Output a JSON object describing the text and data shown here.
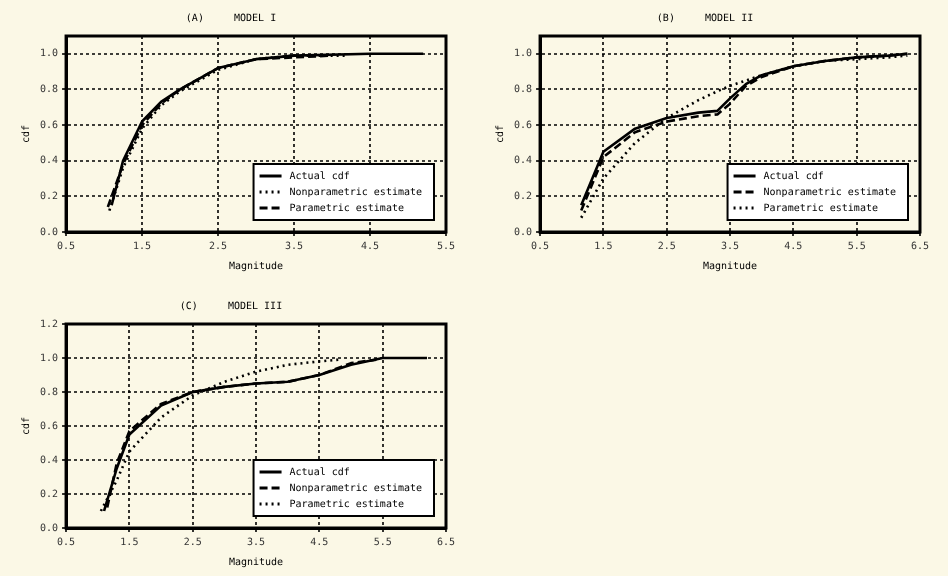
{
  "chart_data": [
    {
      "type": "line",
      "title": "(A)     MODEL I",
      "xlabel": "Magnitude",
      "ylabel": "cdf",
      "xlim": [
        0.5,
        5.5
      ],
      "xticks": [
        0.5,
        1.5,
        2.5,
        3.5,
        4.5,
        5.5
      ],
      "ylim": [
        0,
        1.1
      ],
      "yticks": [
        {
          "value": 0,
          "label": "0.0"
        },
        0.2,
        0.4,
        0.6,
        0.8,
        {
          "value": 1,
          "label": "1.0"
        }
      ],
      "grid": true,
      "legend": "bottom right",
      "marker": "none",
      "x": [
        1.1,
        1.25,
        1.5,
        1.75,
        2.0,
        2.5,
        3.0,
        3.5,
        4.5,
        5.2
      ],
      "series": [
        {
          "name": "Actual cdf",
          "color": "#000000",
          "line_style": "solid",
          "values": [
            0.15,
            0.4,
            0.62,
            0.73,
            0.8,
            0.92,
            0.97,
            0.99,
            1.0,
            1.0
          ]
        },
        {
          "name": "Nonparametric estimate",
          "color": "#000000",
          "line_style": "dotted",
          "x": [
            1.07,
            1.25,
            1.5,
            1.75,
            2.0,
            2.5,
            3.0,
            3.5,
            4.2
          ],
          "values": [
            0.12,
            0.36,
            0.58,
            0.71,
            0.79,
            0.91,
            0.97,
            0.99,
            0.99
          ]
        },
        {
          "name": "Parametric estimate",
          "color": "#000000",
          "line_style": "dashed",
          "x": [
            1.05,
            1.25,
            1.5,
            1.75,
            2.0,
            2.5,
            3.0,
            3.5,
            4.0
          ],
          "values": [
            0.14,
            0.38,
            0.6,
            0.72,
            0.8,
            0.92,
            0.97,
            0.98,
            0.99
          ]
        }
      ]
    },
    {
      "type": "line",
      "title": "(B)     MODEL II",
      "xlabel": "Magnitude",
      "ylabel": "cdf",
      "xlim": [
        0.5,
        6.5
      ],
      "xticks": [
        0.5,
        1.5,
        2.5,
        3.5,
        4.5,
        5.5,
        6.5
      ],
      "ylim": [
        0,
        1.1
      ],
      "yticks": [
        {
          "value": 0,
          "label": "0.0"
        },
        0.2,
        0.4,
        0.6,
        0.8,
        {
          "value": 1,
          "label": "1.0"
        }
      ],
      "grid": true,
      "legend": "bottom right",
      "marker": "none",
      "x": [
        1.15,
        1.5,
        2.0,
        2.5,
        3.0,
        3.3,
        3.5,
        3.75,
        4.0,
        4.5,
        5.0,
        5.5,
        6.0,
        6.3
      ],
      "series": [
        {
          "name": "Actual cdf",
          "color": "#000000",
          "line_style": "solid",
          "values": [
            0.15,
            0.45,
            0.58,
            0.64,
            0.67,
            0.68,
            0.75,
            0.83,
            0.88,
            0.93,
            0.96,
            0.98,
            0.99,
            1.0
          ]
        },
        {
          "name": "Nonparametric estimate",
          "color": "#000000",
          "line_style": "dashed",
          "values": [
            0.12,
            0.42,
            0.56,
            0.62,
            0.65,
            0.66,
            0.72,
            0.82,
            0.87,
            0.93,
            0.96,
            0.98,
            0.99,
            1.0
          ]
        },
        {
          "name": "Parametric estimate",
          "color": "#000000",
          "line_style": "dotted",
          "values": [
            0.08,
            0.3,
            0.5,
            0.64,
            0.74,
            0.79,
            0.82,
            0.85,
            0.88,
            0.93,
            0.96,
            0.97,
            0.98,
            0.99
          ]
        }
      ]
    },
    {
      "type": "line",
      "title": "(C)     MODEL III",
      "xlabel": "Magnitude",
      "ylabel": "cdf",
      "xlim": [
        0.5,
        6.5
      ],
      "xticks": [
        0.5,
        1.5,
        2.5,
        3.5,
        4.5,
        5.5,
        6.5
      ],
      "ylim": [
        0,
        1.2
      ],
      "yticks": [
        {
          "value": 0,
          "label": "0.0"
        },
        0.2,
        0.4,
        0.6,
        0.8,
        {
          "value": 1,
          "label": "1.0"
        },
        {
          "value": 1.2,
          "label": "1.2"
        }
      ],
      "grid": true,
      "legend": "bottom right",
      "marker": "none",
      "x": [
        1.1,
        1.3,
        1.5,
        2.0,
        2.5,
        3.0,
        3.5,
        4.0,
        4.5,
        5.0,
        5.5,
        6.2
      ],
      "series": [
        {
          "name": "Actual cdf",
          "color": "#000000",
          "line_style": "solid",
          "values": [
            0.1,
            0.35,
            0.55,
            0.72,
            0.8,
            0.83,
            0.85,
            0.86,
            0.9,
            0.96,
            1.0,
            1.0
          ]
        },
        {
          "name": "Nonparametric estimate",
          "color": "#000000",
          "line_style": "dashed",
          "x": [
            1.15,
            1.3,
            1.5,
            2.0,
            2.5,
            3.0,
            3.5,
            4.0,
            4.5,
            5.0,
            5.4
          ],
          "values": [
            0.12,
            0.38,
            0.57,
            0.73,
            0.8,
            0.83,
            0.85,
            0.86,
            0.9,
            0.97,
            0.99
          ]
        },
        {
          "name": "Parametric estimate",
          "color": "#000000",
          "line_style": "dotted",
          "x": [
            1.05,
            1.3,
            1.5,
            2.0,
            2.5,
            3.0,
            3.5,
            4.0,
            4.5,
            4.8
          ],
          "values": [
            0.1,
            0.28,
            0.45,
            0.65,
            0.78,
            0.86,
            0.92,
            0.96,
            0.98,
            0.99
          ]
        }
      ]
    }
  ]
}
